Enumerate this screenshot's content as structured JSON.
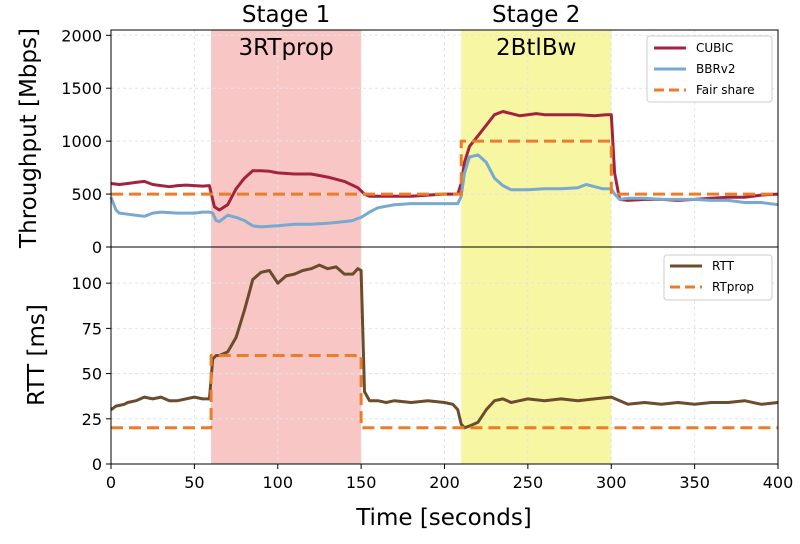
{
  "colors": {
    "cubic": "#a3233e",
    "bbr": "#78a9d1",
    "fair": "#ec7c2a",
    "rtt": "#6b4c2c",
    "rtprop": "#ec7c2a",
    "stage1_bg": "#f9c6c6",
    "stage2_bg": "#f7f7a3"
  },
  "chart_data": [
    {
      "type": "line",
      "ylabel": "Throughput [Mbps]",
      "xlim": [
        0,
        400
      ],
      "ylim": [
        0,
        2050
      ],
      "yticks": [
        0,
        500,
        1000,
        1500,
        2000
      ],
      "legend": "top-right",
      "grid": true,
      "stages": [
        {
          "start": 60,
          "end": 150,
          "title": "Stage 1",
          "label": "3RTprop"
        },
        {
          "start": 210,
          "end": 300,
          "title": "Stage 2",
          "label": "2BtlBw"
        }
      ],
      "series": [
        {
          "name": "CUBIC",
          "x": [
            0,
            5,
            10,
            15,
            20,
            25,
            30,
            35,
            40,
            45,
            50,
            55,
            59,
            62,
            65,
            70,
            75,
            80,
            85,
            90,
            95,
            100,
            110,
            120,
            130,
            140,
            148,
            152,
            155,
            160,
            170,
            180,
            190,
            200,
            208,
            210,
            212,
            215,
            220,
            225,
            230,
            235,
            240,
            245,
            250,
            255,
            260,
            270,
            280,
            290,
            297,
            300,
            302,
            305,
            310,
            320,
            330,
            340,
            350,
            360,
            370,
            380,
            390,
            400
          ],
          "y": [
            600,
            590,
            600,
            610,
            620,
            590,
            580,
            570,
            580,
            585,
            580,
            575,
            580,
            380,
            350,
            400,
            550,
            650,
            720,
            720,
            715,
            700,
            690,
            690,
            660,
            620,
            560,
            500,
            480,
            480,
            480,
            480,
            490,
            500,
            500,
            600,
            800,
            950,
            1050,
            1150,
            1250,
            1280,
            1260,
            1240,
            1250,
            1260,
            1250,
            1250,
            1250,
            1240,
            1250,
            1250,
            700,
            450,
            440,
            450,
            450,
            440,
            450,
            460,
            470,
            470,
            490,
            500
          ]
        },
        {
          "name": "BBRv2",
          "x": [
            0,
            3,
            5,
            10,
            15,
            20,
            25,
            30,
            40,
            50,
            55,
            59,
            61,
            63,
            65,
            70,
            75,
            80,
            85,
            90,
            100,
            110,
            120,
            130,
            140,
            145,
            148,
            150,
            152,
            155,
            160,
            170,
            180,
            190,
            200,
            208,
            210,
            212,
            215,
            220,
            225,
            230,
            235,
            240,
            250,
            260,
            270,
            280,
            285,
            290,
            295,
            300,
            302,
            305,
            310,
            320,
            330,
            340,
            350,
            360,
            370,
            380,
            390,
            400
          ],
          "y": [
            470,
            350,
            320,
            310,
            300,
            290,
            320,
            330,
            320,
            320,
            330,
            330,
            320,
            250,
            240,
            300,
            280,
            250,
            200,
            190,
            200,
            215,
            215,
            225,
            240,
            250,
            270,
            280,
            300,
            330,
            370,
            400,
            410,
            410,
            410,
            410,
            480,
            700,
            850,
            870,
            800,
            650,
            580,
            540,
            540,
            550,
            550,
            560,
            590,
            570,
            550,
            550,
            500,
            450,
            460,
            460,
            450,
            450,
            450,
            440,
            440,
            420,
            420,
            400
          ]
        },
        {
          "name": "Fair share",
          "dashed": true,
          "x": [
            0,
            60,
            60,
            150,
            150,
            210,
            210,
            300,
            300,
            400
          ],
          "y": [
            500,
            500,
            500,
            500,
            500,
            500,
            1000,
            1000,
            500,
            500
          ]
        }
      ]
    },
    {
      "type": "line",
      "xlabel": "Time [seconds]",
      "ylabel": "RTT [ms]",
      "xlim": [
        0,
        400
      ],
      "ylim": [
        0,
        120
      ],
      "xticks": [
        0,
        50,
        100,
        150,
        200,
        250,
        300,
        350,
        400
      ],
      "yticks": [
        0,
        25,
        50,
        75,
        100
      ],
      "legend": "top-right",
      "grid": true,
      "series": [
        {
          "name": "RTT",
          "x": [
            0,
            3,
            8,
            10,
            15,
            20,
            25,
            30,
            35,
            40,
            45,
            50,
            55,
            59,
            61,
            63,
            65,
            70,
            75,
            80,
            83,
            85,
            90,
            95,
            100,
            105,
            110,
            115,
            120,
            125,
            130,
            135,
            140,
            145,
            148,
            150,
            152,
            155,
            160,
            165,
            170,
            180,
            190,
            200,
            205,
            208,
            210,
            212,
            215,
            220,
            225,
            230,
            235,
            240,
            245,
            250,
            260,
            270,
            280,
            290,
            300,
            310,
            320,
            330,
            340,
            350,
            360,
            370,
            380,
            390,
            400
          ],
          "y": [
            30,
            32,
            33,
            34,
            35,
            37,
            36,
            37,
            35,
            35,
            36,
            37,
            36,
            36,
            58,
            60,
            60,
            62,
            70,
            85,
            95,
            102,
            106,
            107,
            100,
            104,
            105,
            107,
            108,
            110,
            108,
            109,
            105,
            105,
            108,
            107,
            40,
            35,
            35,
            34,
            35,
            34,
            35,
            34,
            33,
            30,
            22,
            20,
            21,
            23,
            30,
            35,
            36,
            34,
            35,
            36,
            35,
            36,
            35,
            36,
            37,
            33,
            34,
            33,
            34,
            33,
            34,
            34,
            35,
            33,
            34
          ]
        },
        {
          "name": "RTprop",
          "dashed": true,
          "x": [
            0,
            60,
            60,
            150,
            150,
            210,
            210,
            300,
            300,
            400
          ],
          "y": [
            20,
            20,
            60,
            60,
            20,
            20,
            20,
            20,
            20,
            20
          ]
        }
      ]
    }
  ]
}
